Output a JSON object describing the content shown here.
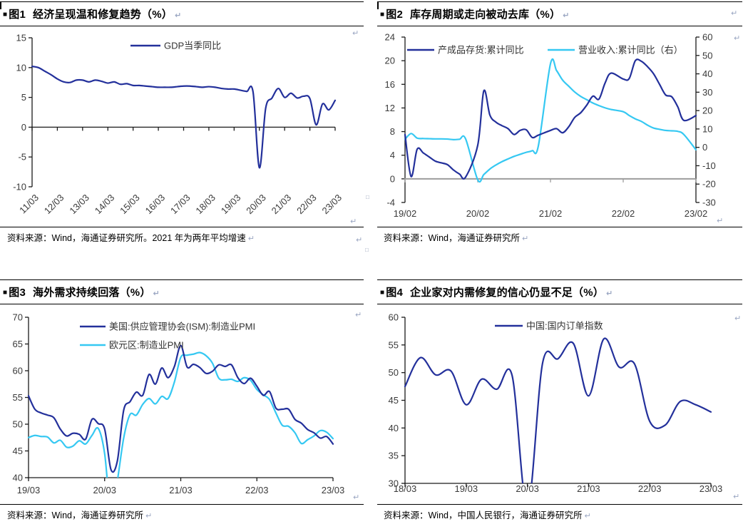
{
  "page": {
    "background": "#ffffff"
  },
  "colors": {
    "navy": "#23309b",
    "cyan": "#35c8f2",
    "axis": "#1a1a1a",
    "tick_label": "#3a3a3a",
    "zero_line_gray": "#9c9c9c",
    "rule": "#000000",
    "format_mark": "#9aa6c2"
  },
  "icons": {
    "title_bullet": "■",
    "paragraph_mark": "↵",
    "anchor_mark": "□"
  },
  "chart_data": [
    {
      "id": "fig1",
      "type": "line",
      "figure_label": "图1",
      "title": "经济呈现温和修复趋势（%）",
      "source": "资料来源：Wind，海通证券研究所。2021 年为两年平均增速",
      "x_tick_labels": [
        "11/03",
        "12/03",
        "13/03",
        "14/03",
        "15/03",
        "16/03",
        "17/03",
        "18/03",
        "19/03",
        "20/03",
        "21/03",
        "22/03",
        "23/03"
      ],
      "x_ticks_rotated": true,
      "x_unit": "quarter (YY/MM)",
      "x_span": 48,
      "y_axis": {
        "min": -10,
        "max": 15,
        "ticks": [
          15,
          10,
          5,
          0,
          -5,
          -10
        ]
      },
      "x_axis_at_zero": true,
      "legend_position": "top-center",
      "series": [
        {
          "name": "GDP当季同比",
          "color_key": "navy",
          "axis": "left",
          "values": [
            10.2,
            10.0,
            9.4,
            8.8,
            8.1,
            7.6,
            7.5,
            7.9,
            7.9,
            7.6,
            7.9,
            7.7,
            7.4,
            7.6,
            7.2,
            7.3,
            7.0,
            7.0,
            6.9,
            6.8,
            6.7,
            6.7,
            6.7,
            6.8,
            6.9,
            6.9,
            6.8,
            6.7,
            6.8,
            6.7,
            6.5,
            6.4,
            6.4,
            6.2,
            6.0,
            5.9,
            -6.8,
            3.2,
            4.9,
            6.5,
            5.0,
            5.7,
            4.9,
            5.2,
            4.8,
            0.4,
            3.9,
            2.9,
            4.5
          ]
        }
      ]
    },
    {
      "id": "fig2",
      "type": "line",
      "figure_label": "图2",
      "title": "库存周期或走向被动去库（%）",
      "source": "资料来源：Wind，海通证券研究所",
      "x_tick_labels": [
        "19/02",
        "20/02",
        "21/02",
        "22/02",
        "23/02"
      ],
      "x_ticks_rotated": false,
      "x_unit": "month (YY/MM), Jan omitted each year",
      "x_span": 48,
      "y_axis": {
        "min": -4,
        "max": 24,
        "ticks": [
          24,
          20,
          16,
          12,
          8,
          4,
          0,
          -4
        ]
      },
      "y_axis_right": {
        "min": -30,
        "max": 60,
        "ticks": [
          60,
          50,
          40,
          30,
          20,
          10,
          0,
          -10,
          -20,
          -30
        ]
      },
      "x_axis_at_zero": true,
      "zero_line_color_key": "zero_line_gray",
      "legend_position": "top-inline",
      "series": [
        {
          "name": "产成品存货:累计同比",
          "color_key": "navy",
          "axis": "left",
          "x": [
            0,
            1,
            2,
            3,
            4,
            5,
            6,
            7,
            8,
            9,
            10,
            12,
            13,
            14,
            15,
            16,
            17,
            18,
            19,
            20,
            21,
            22,
            24,
            25,
            26,
            27,
            28,
            29,
            30,
            31,
            32,
            33,
            34,
            36,
            37,
            38,
            39,
            40,
            41,
            42,
            43,
            44,
            45,
            46,
            48
          ],
          "values": [
            7.5,
            0.4,
            5.0,
            4.4,
            3.7,
            3.0,
            2.7,
            2.4,
            1.5,
            0.8,
            0.3,
            5.7,
            14.9,
            10.8,
            9.6,
            9.0,
            8.5,
            7.5,
            8.2,
            8.3,
            7.0,
            7.4,
            8.2,
            8.5,
            7.8,
            8.8,
            10.4,
            11.2,
            12.5,
            14.0,
            13.5,
            16.2,
            17.9,
            16.9,
            17.0,
            20.0,
            19.9,
            19.0,
            17.8,
            16.0,
            14.2,
            13.9,
            12.2,
            9.9,
            10.7
          ]
        },
        {
          "name": "营业收入:累计同比（右）",
          "color_key": "cyan",
          "axis": "right",
          "x": [
            0,
            1,
            2,
            3,
            4,
            5,
            6,
            7,
            8,
            9,
            10,
            12,
            13,
            14,
            15,
            16,
            17,
            18,
            19,
            20,
            21,
            22,
            24,
            25,
            26,
            27,
            28,
            29,
            30,
            31,
            32,
            33,
            34,
            36,
            37,
            38,
            39,
            40,
            41,
            42,
            43,
            44,
            45,
            46,
            48
          ],
          "values": [
            4.4,
            7.5,
            5.0,
            4.8,
            4.7,
            4.6,
            4.6,
            4.5,
            4.2,
            4.4,
            4.6,
            -17.7,
            -14.8,
            -11.8,
            -9.6,
            -7.8,
            -6.3,
            -4.9,
            -3.8,
            -2.7,
            -1.8,
            0.8,
            45.5,
            41.8,
            36.6,
            33.3,
            30.1,
            27.7,
            25.9,
            24.1,
            22.7,
            21.5,
            20.6,
            19.4,
            17.3,
            15.5,
            14.1,
            12.1,
            10.5,
            9.8,
            9.2,
            9.0,
            8.7,
            7.0,
            -1.3
          ]
        }
      ]
    },
    {
      "id": "fig3",
      "type": "line",
      "figure_label": "图3",
      "title": "海外需求持续回落（%）",
      "source": "资料来源：Wind，海通证券研究所",
      "x_tick_labels": [
        "19/03",
        "20/03",
        "21/03",
        "22/03",
        "23/03"
      ],
      "x_ticks_rotated": false,
      "x_unit": "month (YY/MM)",
      "x_span": 48,
      "y_axis": {
        "min": 40,
        "max": 70,
        "ticks": [
          70,
          65,
          60,
          55,
          50,
          45,
          40
        ]
      },
      "x_axis_at_zero": false,
      "legend_position": "top-left-stacked",
      "series": [
        {
          "name": "美国:供应管理协会(ISM):制造业PMI",
          "color_key": "navy",
          "axis": "left",
          "values": [
            55.3,
            52.8,
            52.1,
            51.7,
            51.2,
            49.1,
            47.8,
            48.3,
            48.1,
            47.2,
            50.9,
            50.1,
            49.1,
            41.5,
            43.1,
            52.6,
            54.2,
            56.0,
            55.4,
            59.3,
            57.5,
            60.5,
            58.7,
            60.8,
            64.7,
            60.7,
            61.2,
            60.6,
            59.5,
            59.9,
            61.1,
            60.8,
            61.1,
            58.7,
            57.6,
            58.6,
            57.1,
            55.4,
            56.1,
            53.0,
            52.8,
            52.8,
            50.9,
            50.2,
            49.0,
            48.4,
            47.4,
            47.7,
            46.3
          ]
        },
        {
          "name": "欧元区:制造业PMI",
          "color_key": "cyan",
          "axis": "left",
          "values": [
            47.5,
            47.9,
            47.7,
            47.6,
            46.5,
            47.0,
            45.7,
            45.9,
            46.9,
            46.3,
            47.9,
            49.2,
            44.5,
            33.4,
            39.4,
            47.4,
            51.8,
            51.7,
            53.7,
            54.8,
            53.8,
            55.2,
            54.8,
            57.9,
            62.5,
            62.9,
            63.1,
            63.4,
            62.8,
            61.4,
            58.6,
            58.3,
            58.4,
            58.0,
            58.7,
            58.2,
            56.5,
            55.5,
            54.6,
            52.1,
            49.8,
            49.6,
            48.4,
            46.4,
            47.1,
            47.8,
            48.8,
            48.5,
            47.3
          ]
        }
      ]
    },
    {
      "id": "fig4",
      "type": "line",
      "figure_label": "图4",
      "title": "企业家对内需修复的信心仍显不足（%）",
      "source": "资料来源：Wind，中国人民银行，海通证券研究所",
      "x_tick_labels": [
        "18/03",
        "19/03",
        "20/03",
        "21/03",
        "22/03",
        "23/03"
      ],
      "x_ticks_rotated": false,
      "x_unit": "quarter (YY/MM)",
      "x_span": 20,
      "y_axis": {
        "min": 30,
        "max": 60,
        "ticks": [
          60,
          55,
          50,
          45,
          40,
          35,
          30
        ]
      },
      "x_axis_at_zero": false,
      "legend_position": "top-center",
      "series": [
        {
          "name": "中国:国内订单指数",
          "color_key": "navy",
          "axis": "left",
          "values": [
            47.5,
            52.7,
            49.6,
            50.3,
            44.2,
            48.8,
            47.0,
            49.5,
            25.5,
            51.8,
            52.5,
            55.3,
            45.8,
            56.1,
            51.0,
            51.6,
            41.2,
            40.5,
            44.8,
            44.2,
            42.9
          ]
        }
      ]
    }
  ]
}
